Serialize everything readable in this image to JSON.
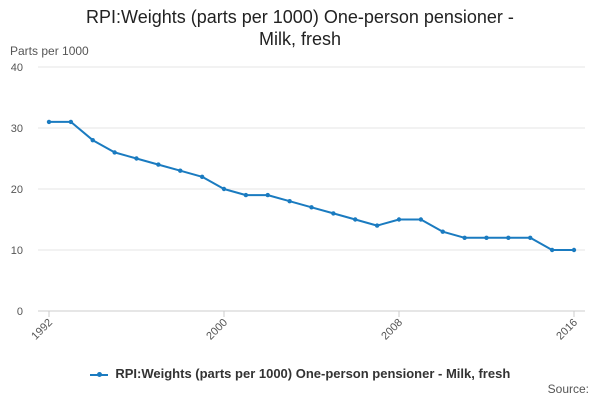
{
  "chart_data": {
    "type": "line",
    "title": "RPI:Weights (parts per 1000) One-person pensioner - Milk, fresh",
    "ylabel": "Parts per 1000",
    "xlabel": "",
    "ylim": [
      0,
      40
    ],
    "yticks": [
      0,
      10,
      20,
      30,
      40
    ],
    "xlim": [
      1992,
      2016
    ],
    "xticks": [
      1992,
      2000,
      2008,
      2016
    ],
    "legend_position": "bottom",
    "series": [
      {
        "name": "RPI:Weights (parts per 1000) One-person pensioner - Milk, fresh",
        "color": "#1a7bc0",
        "x": [
          1992,
          1993,
          1994,
          1995,
          1996,
          1997,
          1998,
          1999,
          2000,
          2001,
          2002,
          2003,
          2004,
          2005,
          2006,
          2007,
          2008,
          2009,
          2010,
          2011,
          2012,
          2013,
          2014,
          2015,
          2016
        ],
        "values": [
          31,
          31,
          28,
          26,
          25,
          24,
          23,
          22,
          20,
          19,
          19,
          18,
          17,
          16,
          15,
          14,
          15,
          15,
          13,
          12,
          12,
          12,
          12,
          10,
          10
        ]
      }
    ],
    "source_label": "Source:"
  }
}
